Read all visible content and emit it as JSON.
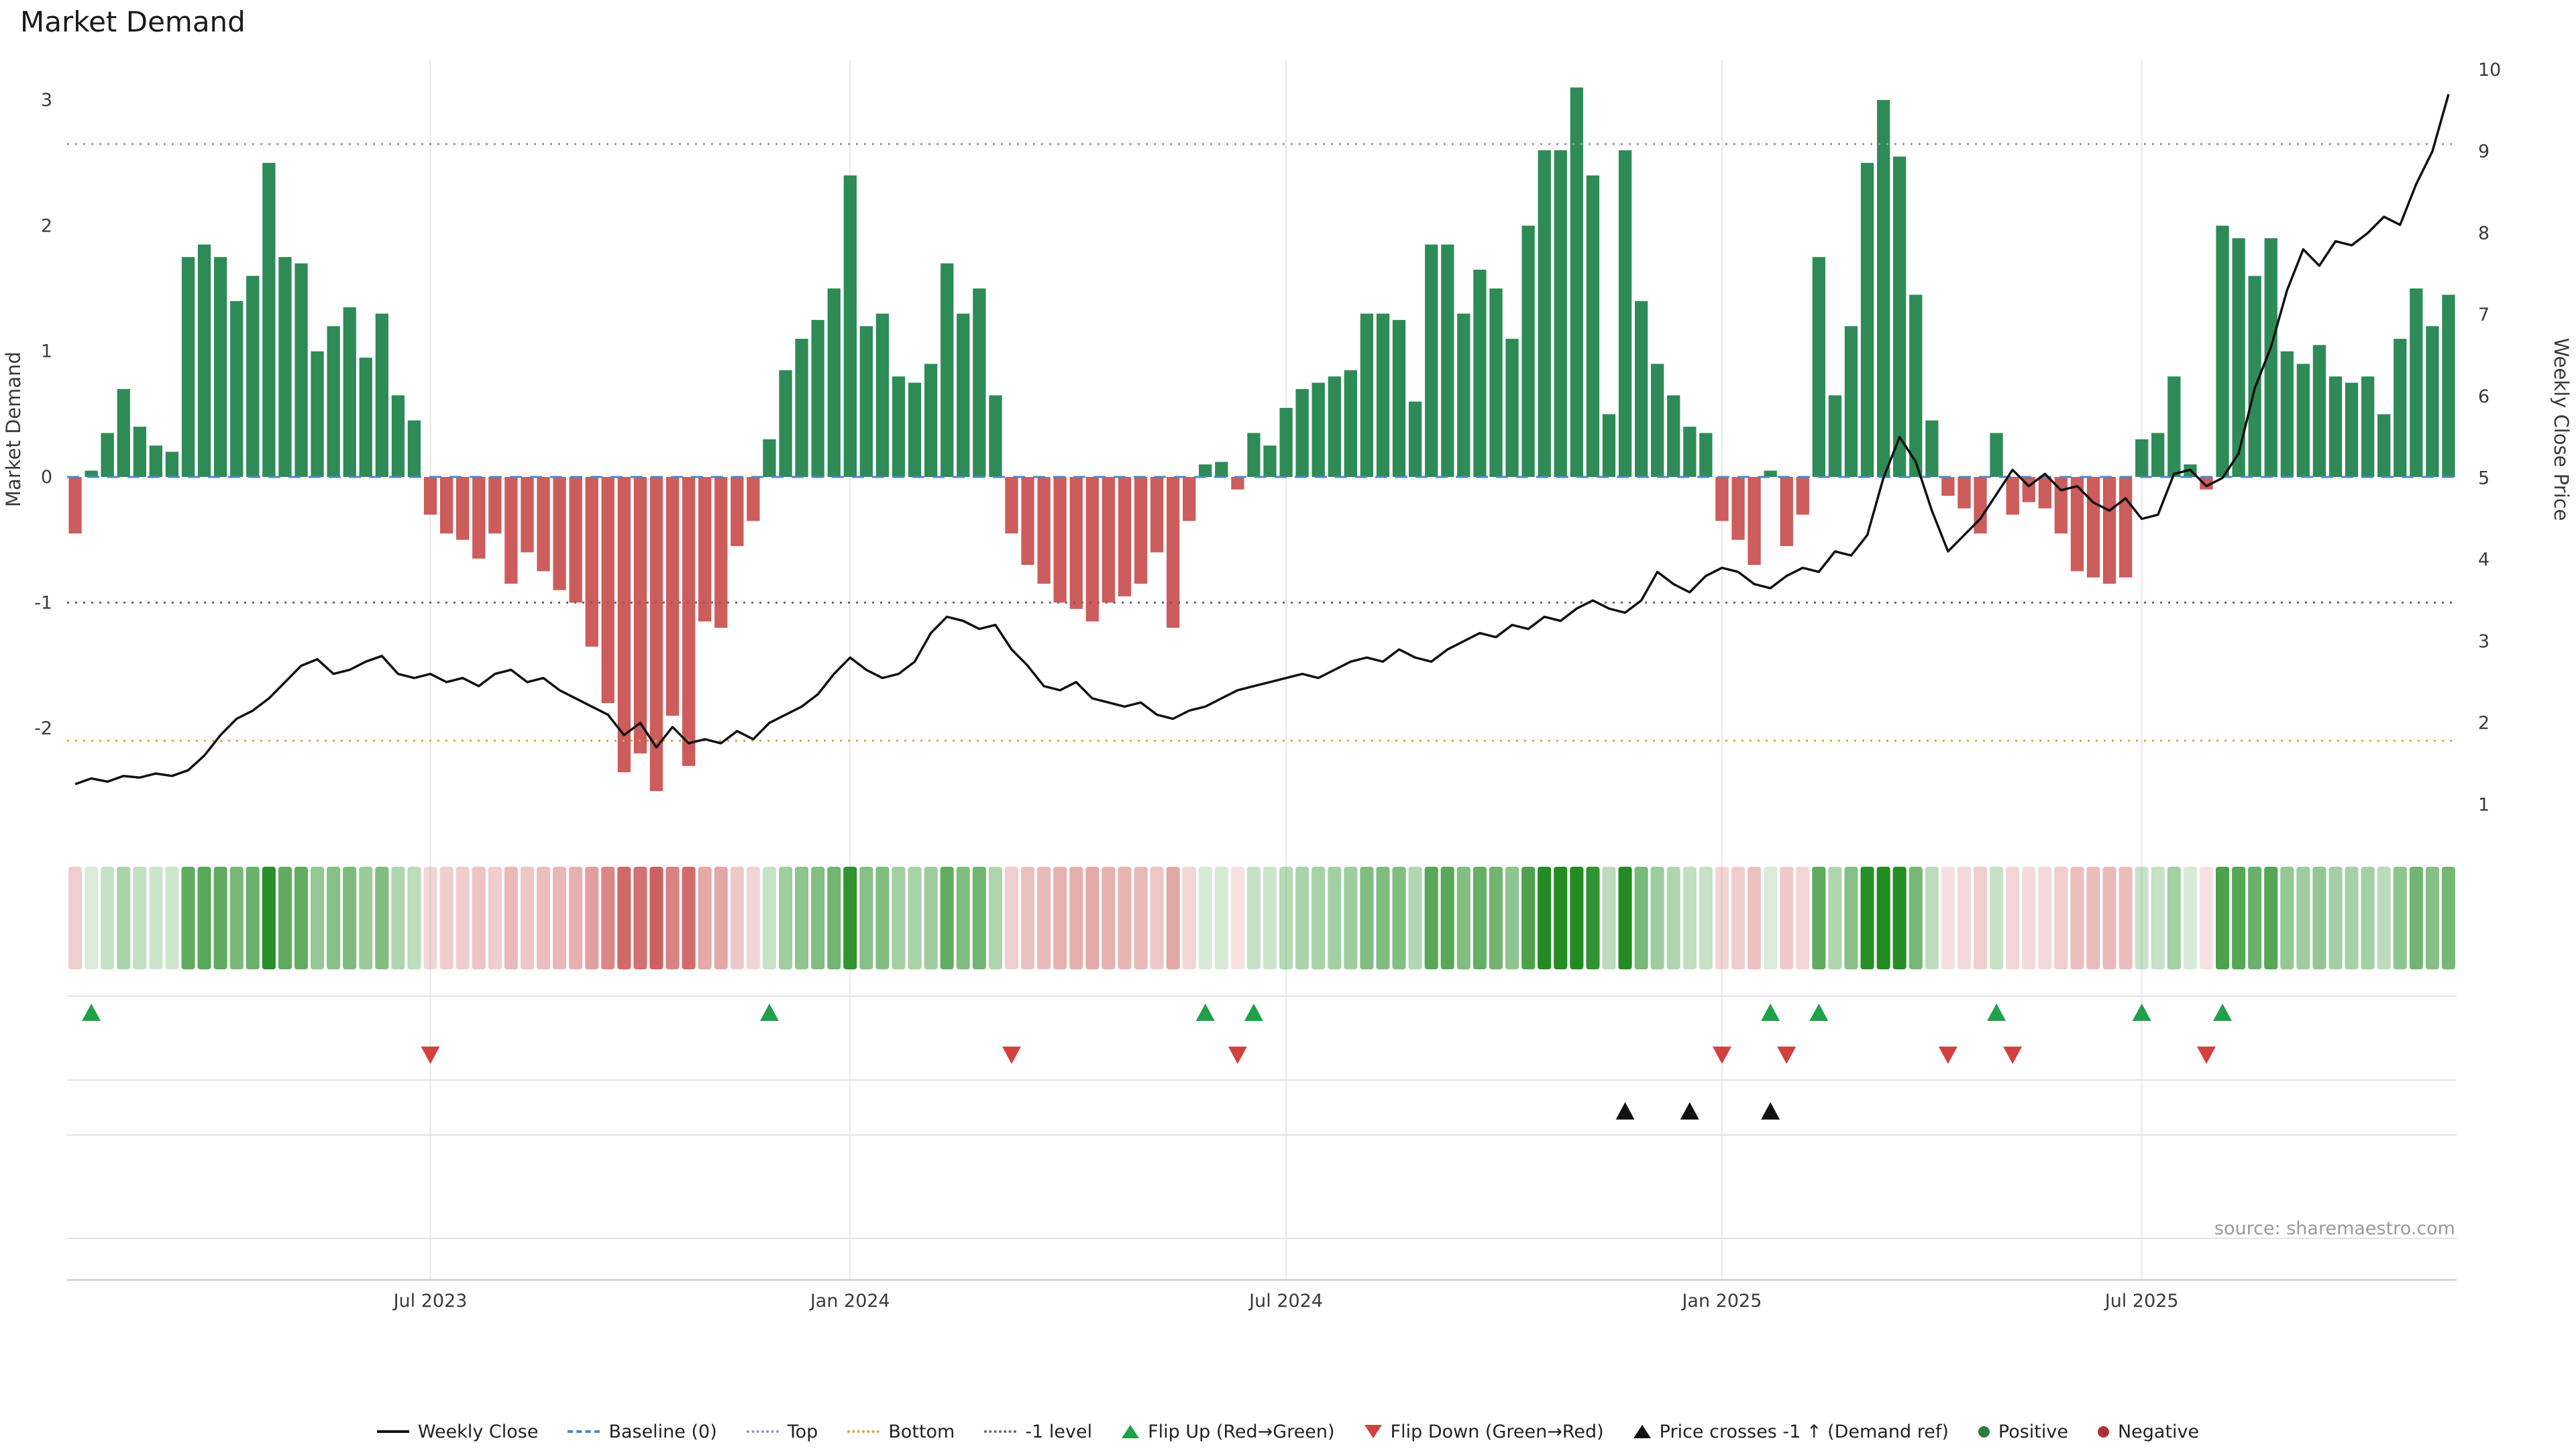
{
  "title": "Market Demand",
  "source": "source: sharemaestro.com",
  "axes": {
    "left_label": "Market Demand",
    "right_label": "Weekly Close Price",
    "left_ticks": [
      3,
      2,
      1,
      0,
      -1,
      -2
    ],
    "right_ticks": [
      10,
      9,
      8,
      7,
      6,
      5,
      4,
      3,
      2,
      1
    ]
  },
  "colors": {
    "positive": "#2e8b57",
    "negative": "#cd5c5c",
    "price_line": "#111111",
    "flip_up": "#1fa049",
    "flip_down": "#d34040",
    "price_cross": "#111111",
    "baseline": "#4f86c6",
    "top_line": "#9393b5",
    "bottom_line": "#e0a23c",
    "minus1_line": "#6e5f79",
    "positive_dot": "#2e7d40",
    "negative_dot": "#b03038",
    "gridline": "#e7e7e7",
    "lane_line": "#e3e3e3",
    "axis_line": "#cccccc"
  },
  "chart_data": {
    "type": "bar+line",
    "x_unit": "week",
    "x_ticks": [
      {
        "label": "Jul 2023",
        "week": 22
      },
      {
        "label": "Jan 2024",
        "week": 48
      },
      {
        "label": "Jul 2024",
        "week": 75
      },
      {
        "label": "Jan 2025",
        "week": 102
      },
      {
        "label": "Jul 2025",
        "week": 128
      }
    ],
    "left_ylim": [
      -2.6,
      3.3
    ],
    "right_ylim": [
      0.8,
      10.2
    ],
    "series": [
      {
        "name": "Market Demand",
        "type": "bar",
        "axis": "left",
        "values": [
          -0.45,
          0.05,
          0.35,
          0.7,
          0.4,
          0.25,
          0.2,
          1.75,
          1.85,
          1.75,
          1.4,
          1.6,
          2.5,
          1.75,
          1.7,
          1.0,
          1.2,
          1.35,
          0.95,
          1.3,
          0.65,
          0.45,
          -0.3,
          -0.45,
          -0.5,
          -0.65,
          -0.45,
          -0.85,
          -0.6,
          -0.75,
          -0.9,
          -1.0,
          -1.35,
          -1.8,
          -2.35,
          -2.2,
          -2.5,
          -1.9,
          -2.3,
          -1.15,
          -1.2,
          -0.55,
          -0.35,
          0.3,
          0.85,
          1.1,
          1.25,
          1.5,
          2.4,
          1.2,
          1.3,
          0.8,
          0.75,
          0.9,
          1.7,
          1.3,
          1.5,
          0.65,
          -0.45,
          -0.7,
          -0.85,
          -1.0,
          -1.05,
          -1.15,
          -1.0,
          -0.95,
          -0.85,
          -0.6,
          -1.2,
          -0.35,
          0.1,
          0.12,
          -0.1,
          0.35,
          0.25,
          0.55,
          0.7,
          0.75,
          0.8,
          0.85,
          1.3,
          1.3,
          1.25,
          0.6,
          1.85,
          1.85,
          1.3,
          1.65,
          1.5,
          1.1,
          2.0,
          2.6,
          2.6,
          3.1,
          2.4,
          0.5,
          2.6,
          1.4,
          0.9,
          0.65,
          0.4,
          0.35,
          -0.35,
          -0.5,
          -0.7,
          0.05,
          -0.55,
          -0.3,
          1.75,
          0.65,
          1.2,
          2.5,
          3.0,
          2.55,
          1.45,
          0.45,
          -0.15,
          -0.25,
          -0.45,
          0.35,
          -0.3,
          -0.2,
          -0.25,
          -0.45,
          -0.75,
          -0.8,
          -0.85,
          -0.8,
          0.3,
          0.35,
          0.8,
          0.1,
          -0.1,
          2.0,
          1.9,
          1.6,
          1.9,
          1.0,
          0.9,
          1.05,
          0.8,
          0.75,
          0.8,
          0.5,
          1.1,
          1.5,
          1.2,
          1.45
        ]
      },
      {
        "name": "Weekly Close",
        "type": "line",
        "axis": "right",
        "values": [
          1.25,
          1.32,
          1.28,
          1.35,
          1.33,
          1.38,
          1.35,
          1.42,
          1.6,
          1.85,
          2.05,
          2.15,
          2.3,
          2.5,
          2.7,
          2.78,
          2.6,
          2.65,
          2.75,
          2.82,
          2.6,
          2.55,
          2.6,
          2.5,
          2.55,
          2.45,
          2.6,
          2.65,
          2.5,
          2.55,
          2.4,
          2.3,
          2.2,
          2.1,
          1.85,
          2.0,
          1.7,
          1.95,
          1.75,
          1.8,
          1.75,
          1.9,
          1.8,
          2.0,
          2.1,
          2.2,
          2.35,
          2.6,
          2.8,
          2.65,
          2.55,
          2.6,
          2.75,
          3.1,
          3.3,
          3.25,
          3.15,
          3.2,
          2.9,
          2.7,
          2.45,
          2.4,
          2.5,
          2.3,
          2.25,
          2.2,
          2.25,
          2.1,
          2.05,
          2.15,
          2.2,
          2.3,
          2.4,
          2.45,
          2.5,
          2.55,
          2.6,
          2.55,
          2.65,
          2.75,
          2.8,
          2.75,
          2.9,
          2.8,
          2.75,
          2.9,
          3.0,
          3.1,
          3.05,
          3.2,
          3.15,
          3.3,
          3.25,
          3.4,
          3.5,
          3.4,
          3.35,
          3.5,
          3.85,
          3.7,
          3.6,
          3.8,
          3.9,
          3.85,
          3.7,
          3.65,
          3.8,
          3.9,
          3.85,
          4.1,
          4.05,
          4.3,
          5.0,
          5.5,
          5.2,
          4.6,
          4.1,
          4.3,
          4.5,
          4.8,
          5.1,
          4.9,
          5.05,
          4.85,
          4.9,
          4.7,
          4.6,
          4.75,
          4.5,
          4.55,
          5.05,
          5.1,
          4.9,
          5.0,
          5.3,
          6.1,
          6.6,
          7.3,
          7.8,
          7.6,
          7.9,
          7.85,
          8.0,
          8.2,
          8.1,
          8.6,
          9.0,
          9.7
        ]
      }
    ],
    "reference_lines": [
      {
        "name": "Baseline (0)",
        "value": 0,
        "style": "dashed",
        "color": "#4f86c6"
      },
      {
        "name": "Top",
        "value": 2.65,
        "style": "dotted",
        "color": "#9393b5"
      },
      {
        "name": "Bottom",
        "value": -2.1,
        "style": "dotted",
        "color": "#e0a23c"
      },
      {
        "name": "-1 level",
        "value": -1,
        "style": "dotted",
        "color": "#6e5f79"
      }
    ],
    "markers": {
      "flip_up_weeks": [
        1,
        43,
        70,
        73,
        105,
        108,
        119,
        128,
        133
      ],
      "flip_down_weeks": [
        22,
        58,
        72,
        102,
        106,
        116,
        120,
        132
      ],
      "price_cross_weeks": [
        96,
        100,
        105
      ]
    }
  },
  "legend": [
    {
      "type": "line",
      "style": "solid",
      "color": "#111111",
      "label": "Weekly Close"
    },
    {
      "type": "line",
      "style": "dashed",
      "color": "#4f86c6",
      "label": "Baseline (0)"
    },
    {
      "type": "line",
      "style": "dotted",
      "color": "#9393b5",
      "label": "Top"
    },
    {
      "type": "line",
      "style": "dotted",
      "color": "#e0a23c",
      "label": "Bottom"
    },
    {
      "type": "line",
      "style": "dotted",
      "color": "#6e5f79",
      "label": "-1 level"
    },
    {
      "type": "triangle-up",
      "color": "#1fa049",
      "label": "Flip Up (Red→Green)"
    },
    {
      "type": "triangle-down",
      "color": "#d34040",
      "label": "Flip Down (Green→Red)"
    },
    {
      "type": "triangle-up",
      "color": "#111111",
      "label": "Price crosses -1 ↑ (Demand ref)"
    },
    {
      "type": "dot",
      "color": "#2e7d40",
      "label": "Positive"
    },
    {
      "type": "dot",
      "color": "#b03038",
      "label": "Negative"
    }
  ]
}
